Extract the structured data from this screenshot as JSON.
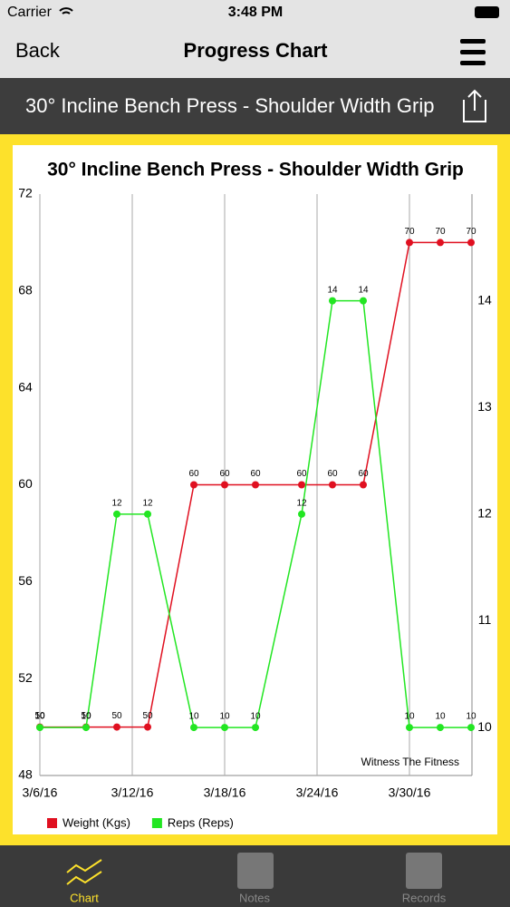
{
  "status_bar": {
    "carrier": "Carrier",
    "time": "3:48 PM"
  },
  "nav": {
    "back": "Back",
    "title": "Progress Chart"
  },
  "header": {
    "title": "30° Incline Bench Press - Shoulder Width Grip"
  },
  "chart_data": {
    "type": "line",
    "title": "30° Incline Bench Press - Shoulder Width Grip",
    "x": [
      "2016-03-06",
      "2016-03-09",
      "2016-03-11",
      "2016-03-13",
      "2016-03-16",
      "2016-03-18",
      "2016-03-20",
      "2016-03-23",
      "2016-03-25",
      "2016-03-27",
      "2016-03-30",
      "2016-04-01",
      "2016-04-03"
    ],
    "xlim": [
      "2016-03-06",
      "2016-04-03"
    ],
    "xticks": [
      {
        "value": "2016-03-06",
        "label": "3/6/16"
      },
      {
        "value": "2016-03-12",
        "label": "3/12/16"
      },
      {
        "value": "2016-03-18",
        "label": "3/18/16"
      },
      {
        "value": "2016-03-24",
        "label": "3/24/16"
      },
      {
        "value": "2016-03-30",
        "label": "3/30/16"
      }
    ],
    "ylim": [
      48,
      72
    ],
    "yticks": [
      48,
      52,
      56,
      60,
      64,
      68,
      72
    ],
    "y2lim": [
      9.55,
      15
    ],
    "y2ticks": [
      10,
      11,
      12,
      13,
      14
    ],
    "series": [
      {
        "name": "Weight (Kgs)",
        "color": "#e01020",
        "values": [
          50,
          50,
          50,
          50,
          60,
          60,
          60,
          60,
          60,
          60,
          70,
          70,
          70
        ]
      },
      {
        "name": "Reps (Reps)",
        "color": "#22e622",
        "axis": "y2",
        "values": [
          10,
          10,
          12,
          12,
          10,
          10,
          10,
          12,
          14,
          14,
          10,
          10,
          10
        ]
      }
    ],
    "annotation": "Witness The Fitness",
    "grid": true
  },
  "tab_bar": {
    "items": [
      "Chart",
      "Notes",
      "Records"
    ]
  }
}
